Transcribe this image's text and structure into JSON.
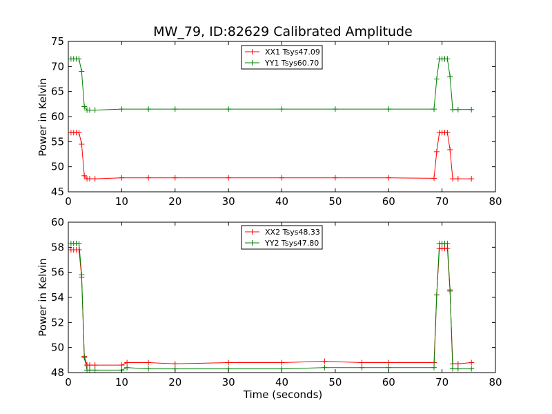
{
  "chart_data": [
    {
      "type": "line",
      "title": "MW_79, ID:82629 Calibrated Amplitude",
      "xlabel": "",
      "ylabel": "Power in Kelvin",
      "xlim": [
        0,
        80
      ],
      "ylim": [
        45,
        75
      ],
      "xticks": [
        0,
        10,
        20,
        30,
        40,
        50,
        60,
        70,
        80
      ],
      "yticks": [
        45,
        50,
        55,
        60,
        65,
        70,
        75
      ],
      "grid": false,
      "legend_position": "top-center",
      "series": [
        {
          "name": "XX1 Tsys47.09",
          "color": "#ff0000",
          "x": [
            0.5,
            1.0,
            1.5,
            2.0,
            2.5,
            3.0,
            3.5,
            4.0,
            5.0,
            10.0,
            15.0,
            20.0,
            30.0,
            40.0,
            50.0,
            60.0,
            68.5,
            69.0,
            69.5,
            70.0,
            70.5,
            71.0,
            71.5,
            72.0,
            73.0,
            75.5
          ],
          "y": [
            56.8,
            56.8,
            56.8,
            56.8,
            54.5,
            48.2,
            47.6,
            47.6,
            47.6,
            47.8,
            47.8,
            47.8,
            47.8,
            47.8,
            47.8,
            47.8,
            47.7,
            53.0,
            56.8,
            56.8,
            56.8,
            56.8,
            53.4,
            47.6,
            47.6,
            47.6
          ]
        },
        {
          "name": "YY1 Tsys60.70",
          "color": "#008000",
          "x": [
            0.5,
            1.0,
            1.5,
            2.0,
            2.5,
            3.0,
            3.5,
            4.0,
            5.0,
            10.0,
            15.0,
            20.0,
            30.0,
            40.0,
            50.0,
            60.0,
            68.5,
            69.0,
            69.5,
            70.0,
            70.5,
            71.0,
            71.5,
            72.0,
            73.0,
            75.5
          ],
          "y": [
            71.5,
            71.5,
            71.5,
            71.5,
            69.0,
            62.0,
            61.3,
            61.3,
            61.3,
            61.5,
            61.5,
            61.5,
            61.5,
            61.5,
            61.5,
            61.5,
            61.5,
            67.5,
            71.5,
            71.5,
            71.5,
            71.5,
            68.0,
            61.4,
            61.4,
            61.4
          ]
        }
      ]
    },
    {
      "type": "line",
      "title": "",
      "xlabel": "Time (seconds)",
      "ylabel": "Power in Kelvin",
      "xlim": [
        0,
        80
      ],
      "ylim": [
        48,
        60
      ],
      "xticks": [
        0,
        10,
        20,
        30,
        40,
        50,
        60,
        70,
        80
      ],
      "yticks": [
        48,
        50,
        52,
        54,
        56,
        58,
        60
      ],
      "grid": false,
      "legend_position": "top-center",
      "series": [
        {
          "name": "XX2 Tsys48.33",
          "color": "#ff0000",
          "x": [
            0.5,
            1.0,
            1.5,
            2.0,
            2.5,
            3.0,
            3.5,
            4.0,
            5.0,
            10.0,
            11.0,
            15.0,
            20.0,
            30.0,
            40.0,
            48.0,
            55.0,
            60.0,
            68.5,
            69.0,
            69.5,
            70.0,
            70.5,
            71.0,
            71.5,
            72.0,
            73.0,
            75.5
          ],
          "y": [
            57.8,
            57.8,
            57.8,
            57.8,
            55.6,
            49.3,
            48.6,
            48.6,
            48.6,
            48.6,
            48.8,
            48.8,
            48.7,
            48.8,
            48.8,
            48.9,
            48.8,
            48.8,
            48.8,
            54.2,
            57.9,
            57.9,
            57.9,
            57.9,
            54.5,
            48.7,
            48.7,
            48.8
          ]
        },
        {
          "name": "YY2 Tsys47.80",
          "color": "#008000",
          "x": [
            0.5,
            1.0,
            1.5,
            2.0,
            2.5,
            3.0,
            3.5,
            4.0,
            5.0,
            10.0,
            11.0,
            15.0,
            20.0,
            30.0,
            40.0,
            48.0,
            55.0,
            60.0,
            68.5,
            69.0,
            69.5,
            70.0,
            70.5,
            71.0,
            71.5,
            72.0,
            73.0,
            75.5
          ],
          "y": [
            58.3,
            58.3,
            58.3,
            58.3,
            55.8,
            49.2,
            48.2,
            48.2,
            48.2,
            48.2,
            48.4,
            48.3,
            48.3,
            48.3,
            48.3,
            48.4,
            48.4,
            48.4,
            48.4,
            54.2,
            58.3,
            58.3,
            58.3,
            58.3,
            54.6,
            48.3,
            48.3,
            48.3
          ]
        }
      ]
    }
  ]
}
